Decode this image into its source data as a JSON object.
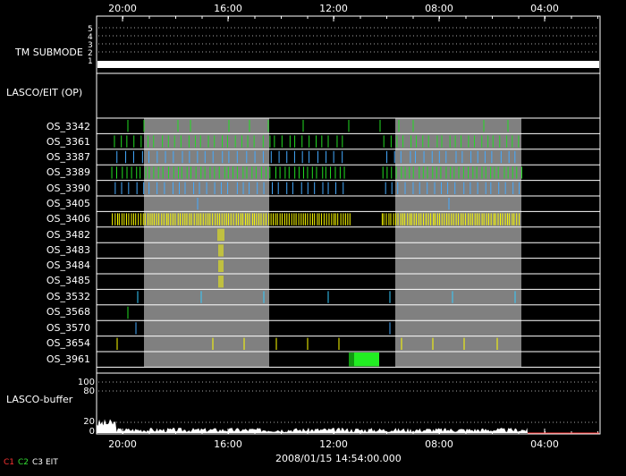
{
  "time_axis": {
    "top_labels": [
      "20:00",
      "16:00",
      "12:00",
      "08:00",
      "04:00"
    ],
    "bottom_labels": [
      "20:00",
      "16:00",
      "12:00",
      "08:00",
      "04:00"
    ]
  },
  "timestamp": "2008/01/15 14:54:00.000",
  "tm_submode": {
    "label": "TM SUBMODE",
    "levels": [
      "5",
      "4",
      "3",
      "2",
      "1"
    ]
  },
  "lasco_eit_label": "LASCO/EIT (OP)",
  "os_rows": [
    {
      "name": "OS_3342",
      "color": "#22dd22"
    },
    {
      "name": "OS_3361",
      "color": "#22dd22"
    },
    {
      "name": "OS_3387",
      "color": "#44aaff"
    },
    {
      "name": "OS_3389",
      "color": "#22dd22"
    },
    {
      "name": "OS_3390",
      "color": "#44aaff"
    },
    {
      "name": "OS_3405",
      "color": "#44aaff"
    },
    {
      "name": "OS_3406",
      "color": "#ffff00"
    },
    {
      "name": "OS_3482",
      "color": "#ffff00"
    },
    {
      "name": "OS_3483",
      "color": "#ffff00"
    },
    {
      "name": "OS_3484",
      "color": "#ffff00"
    },
    {
      "name": "OS_3485",
      "color": "#ffff00"
    },
    {
      "name": "OS_3532",
      "color": "#33ccff"
    },
    {
      "name": "OS_3568",
      "color": "#22dd22"
    },
    {
      "name": "OS_3570",
      "color": "#44aaff"
    },
    {
      "name": "OS_3654",
      "color": "#ffff00"
    },
    {
      "name": "OS_3961",
      "color": "#22dd22"
    }
  ],
  "lasco_buffer": {
    "label": "LASCO-buffer",
    "levels": [
      "100",
      "80",
      "20",
      "0"
    ]
  },
  "legend": [
    {
      "label": "C1",
      "color": "#ff3333"
    },
    {
      "label": "C2",
      "color": "#33dd33"
    },
    {
      "label": "C3",
      "color": "#ffffff"
    },
    {
      "label": "EIT",
      "color": "#ffffff"
    }
  ],
  "colors": {
    "background": "#000000",
    "foreground": "#ffffff",
    "shaded_region": "#808080"
  }
}
